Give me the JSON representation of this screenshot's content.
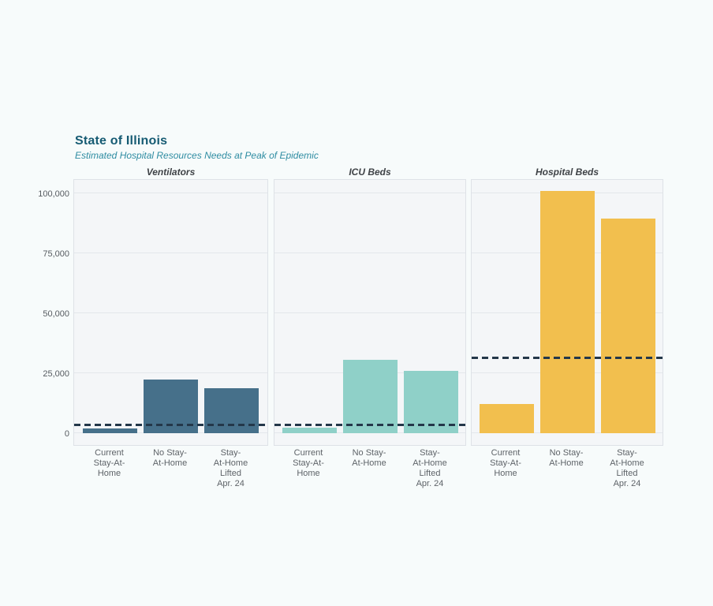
{
  "header": {
    "title": "State of Illinois",
    "subtitle": "Estimated Hospital Resources Needs at Peak of Epidemic"
  },
  "chart_data": {
    "type": "bar",
    "title": "State of Illinois",
    "subtitle": "Estimated Hospital Resources Needs at Peak of Epidemic",
    "categories": [
      "Current Stay-At-Home",
      "No Stay-At-Home",
      "Stay-At-Home Lifted Apr. 24"
    ],
    "category_label_lines": [
      [
        "Current",
        "Stay-At-",
        "Home"
      ],
      [
        "No Stay-",
        "At-Home"
      ],
      [
        "Stay-",
        "At-Home",
        "Lifted",
        "Apr. 24"
      ]
    ],
    "panels": [
      {
        "title": "Ventilators",
        "color": "#46708a",
        "values": [
          2000,
          22400,
          18800
        ],
        "capacity_line": 3300
      },
      {
        "title": "ICU Beds",
        "color": "#8fd0c8",
        "values": [
          2200,
          30700,
          26100
        ],
        "capacity_line": 3300
      },
      {
        "title": "Hospital Beds",
        "color": "#f2bf4e",
        "values": [
          12100,
          101000,
          89500
        ],
        "capacity_line": 31400
      }
    ],
    "y_ticks": [
      0,
      25000,
      50000,
      75000,
      100000
    ],
    "y_tick_labels": [
      "0",
      "25,000",
      "50,000",
      "75,000",
      "100,000"
    ],
    "ylim": [
      -5200,
      106000
    ],
    "grid": true,
    "legend": "none",
    "capacity_line_color": "#24384a",
    "capacity_line_style": "dashed"
  },
  "colors": {
    "page_background": "#f7fbfb",
    "plot_background": "#f4f6f8",
    "title": "#165b73",
    "subtitle": "#2e8ca2"
  }
}
